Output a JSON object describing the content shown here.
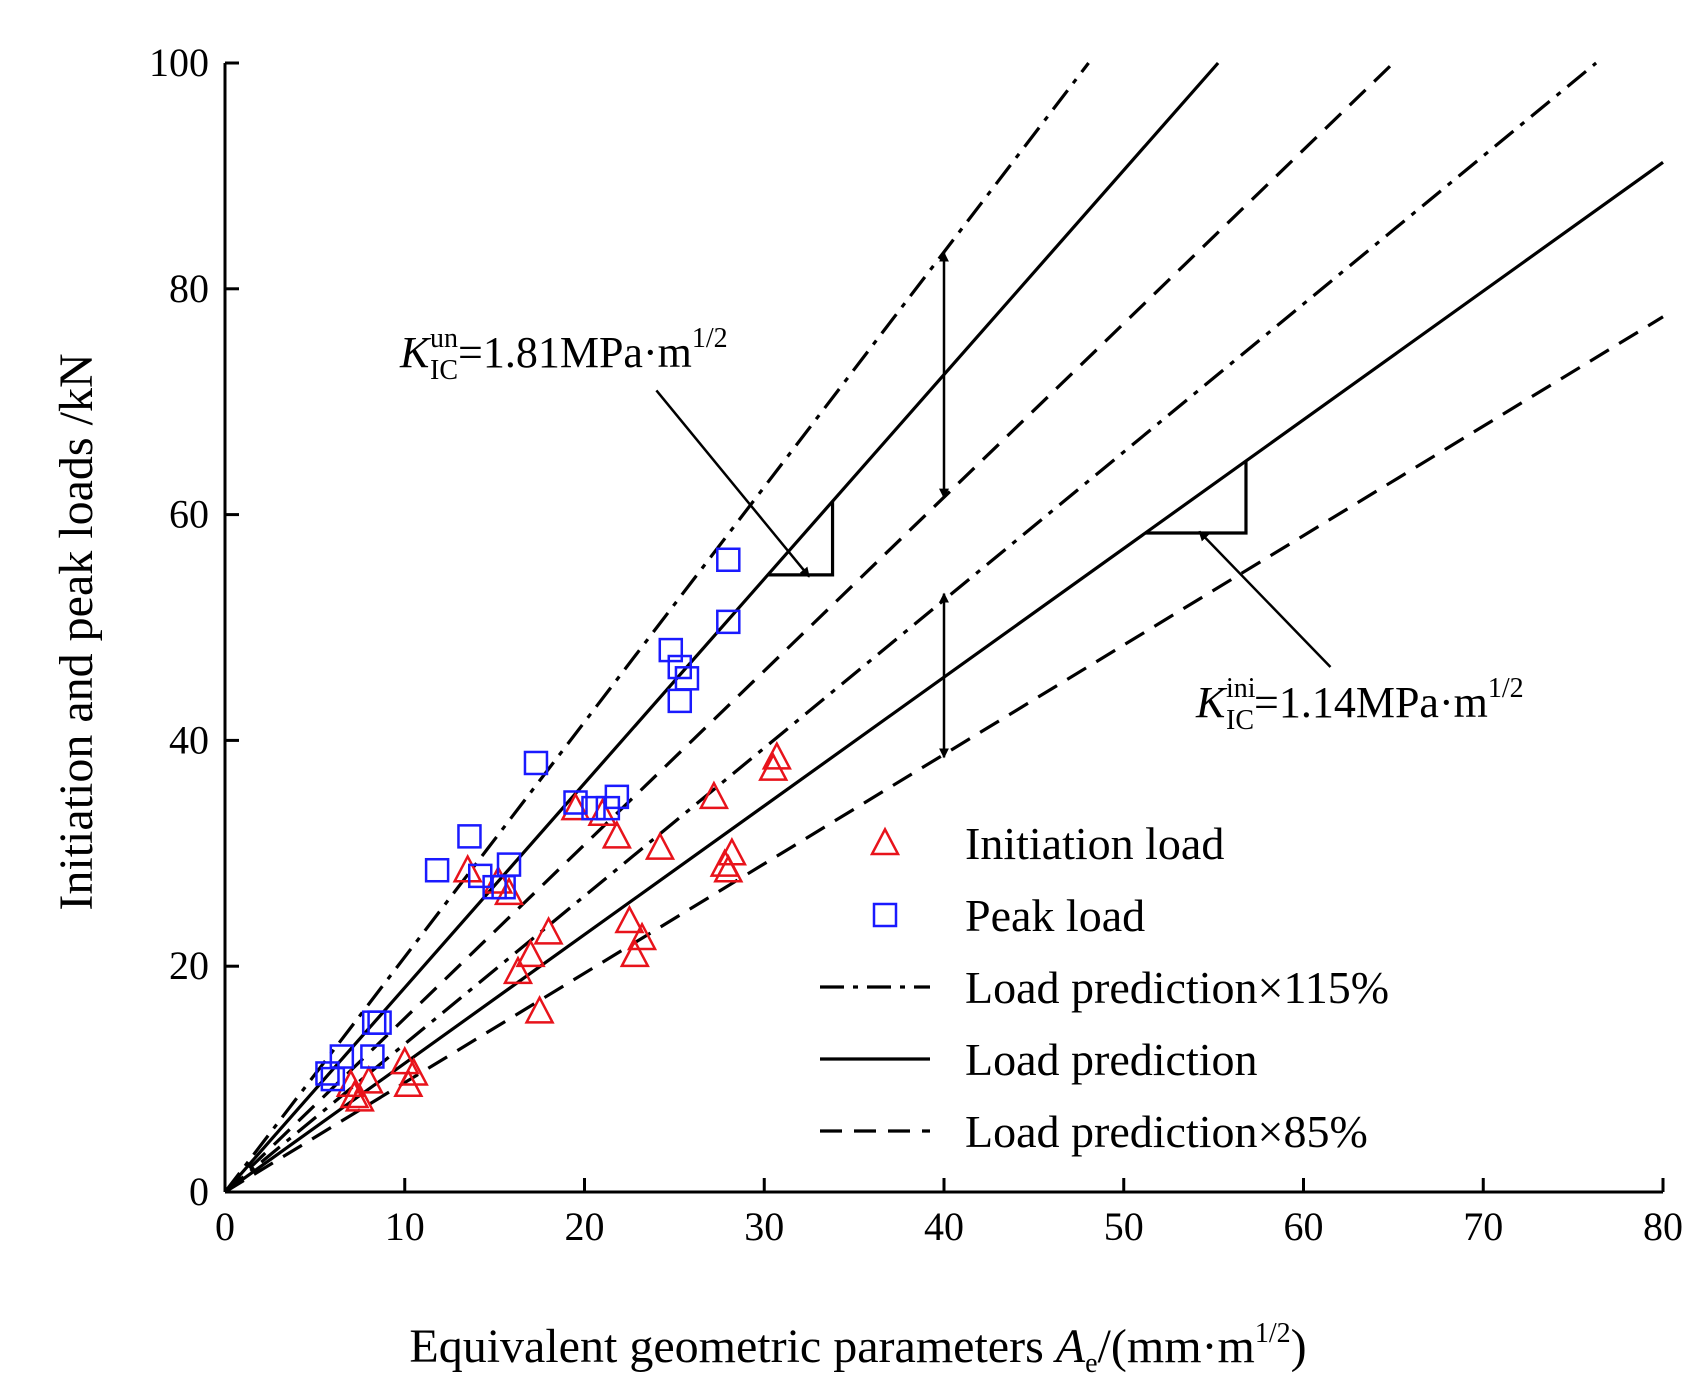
{
  "chart_data": {
    "type": "scatter",
    "xlabel": {
      "main": "Equivalent geometric parameters ",
      "var": "A",
      "sub": "e",
      "unit_open": "/(mm·m",
      "sup": "1/2",
      "unit_close": ")"
    },
    "ylabel": "Initiation and peak loads /kN",
    "xlim": [
      0,
      80
    ],
    "ylim": [
      0,
      100
    ],
    "xticks": [
      0,
      10,
      20,
      30,
      40,
      50,
      60,
      70,
      80
    ],
    "yticks": [
      0,
      20,
      40,
      60,
      80,
      100
    ],
    "grid": false,
    "legend_position": "bottom-right",
    "legend": [
      {
        "key": "initiation",
        "label": "Initiation load",
        "symbol": "triangle",
        "color": "#e8131b"
      },
      {
        "key": "peak",
        "label": "Peak load",
        "symbol": "square",
        "color": "#1a1aff"
      },
      {
        "key": "pred115",
        "label": "Load prediction×115%",
        "style": "dashdot"
      },
      {
        "key": "pred",
        "label": "Load prediction",
        "style": "solid"
      },
      {
        "key": "pred85",
        "label": "Load prediction×85%",
        "style": "dashed"
      }
    ],
    "series": [
      {
        "name": "Initiation load",
        "symbol": "triangle",
        "color": "#e8131b",
        "points": [
          [
            7.0,
            9.5
          ],
          [
            7.2,
            8.5
          ],
          [
            7.5,
            8.2
          ],
          [
            8.0,
            9.8
          ],
          [
            10.0,
            11.5
          ],
          [
            10.2,
            9.5
          ],
          [
            10.5,
            10.5
          ],
          [
            13.5,
            28.5
          ],
          [
            15.2,
            27.5
          ],
          [
            15.8,
            26.5
          ],
          [
            16.3,
            19.5
          ],
          [
            17.0,
            21.0
          ],
          [
            17.5,
            16.0
          ],
          [
            18.0,
            23.0
          ],
          [
            19.5,
            34.0
          ],
          [
            21.0,
            33.5
          ],
          [
            21.8,
            31.5
          ],
          [
            22.5,
            24.0
          ],
          [
            22.8,
            21.0
          ],
          [
            23.2,
            22.5
          ],
          [
            24.2,
            30.5
          ],
          [
            27.2,
            35.0
          ],
          [
            27.8,
            29.0
          ],
          [
            28.0,
            28.5
          ],
          [
            28.2,
            30.0
          ],
          [
            30.5,
            37.5
          ],
          [
            30.7,
            38.5
          ]
        ]
      },
      {
        "name": "Peak load",
        "symbol": "square",
        "color": "#1a1aff",
        "points": [
          [
            5.7,
            10.5
          ],
          [
            6.0,
            10.0
          ],
          [
            6.5,
            12.0
          ],
          [
            8.2,
            12.0
          ],
          [
            8.3,
            15.0
          ],
          [
            8.6,
            15.0
          ],
          [
            11.8,
            28.5
          ],
          [
            13.6,
            31.5
          ],
          [
            14.2,
            28.0
          ],
          [
            15.0,
            27.0
          ],
          [
            15.5,
            27.0
          ],
          [
            15.8,
            29.0
          ],
          [
            17.3,
            38.0
          ],
          [
            19.5,
            34.5
          ],
          [
            20.5,
            34.0
          ],
          [
            21.3,
            34.0
          ],
          [
            21.8,
            35.0
          ],
          [
            24.8,
            48.0
          ],
          [
            25.3,
            46.5
          ],
          [
            25.3,
            43.5
          ],
          [
            25.7,
            45.5
          ],
          [
            28.0,
            50.5
          ],
          [
            28.0,
            56.0
          ]
        ]
      }
    ],
    "lines": [
      {
        "name": "Load prediction×115%",
        "group": "un",
        "slope": 2.0815,
        "style": "dashdot"
      },
      {
        "name": "Load prediction",
        "group": "un",
        "slope": 1.81,
        "style": "solid"
      },
      {
        "name": "Load prediction×85%",
        "group": "un",
        "slope": 1.5385,
        "style": "dashed"
      },
      {
        "name": "Load prediction×115%",
        "group": "ini",
        "slope": 1.311,
        "style": "dashdot"
      },
      {
        "name": "Load prediction",
        "group": "ini",
        "slope": 1.14,
        "style": "solid"
      },
      {
        "name": "Load prediction×85%",
        "group": "ini",
        "slope": 0.969,
        "style": "dashed"
      }
    ],
    "annotations": [
      {
        "key": "un",
        "symbol": "K",
        "sub": "IC",
        "sup": "un",
        "text": "=1.81MPa·m",
        "exp": "1/2",
        "slope": 1.81,
        "triangle_x": [
          30.2,
          33.8
        ],
        "range_arrow_x": 40,
        "range_arrow_y": [
          83.2,
          61.5
        ],
        "pointer_from": [
          24.0,
          71.0
        ],
        "pointer_to": [
          32.5,
          54.5
        ]
      },
      {
        "key": "ini",
        "symbol": "K",
        "sub": "IC",
        "sup": "ini",
        "text": "=1.14MPa·m",
        "exp": "1/2",
        "slope": 1.14,
        "triangle_x": [
          51.2,
          56.8
        ],
        "range_arrow_x": 40,
        "range_arrow_y": [
          53.0,
          38.5
        ],
        "pointer_from": [
          61.5,
          46.5
        ],
        "pointer_to": [
          54.2,
          58.5
        ]
      }
    ]
  }
}
